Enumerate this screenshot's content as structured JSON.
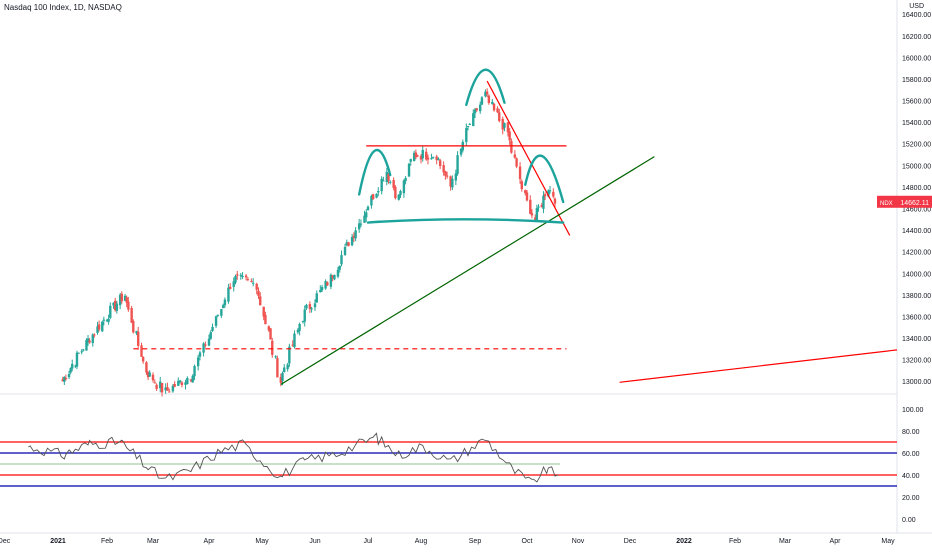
{
  "header": {
    "title": "Nasdaq 100 Index, 1D, NASDAQ",
    "currency": "USD"
  },
  "chart_data": [
    {
      "type": "candlestick",
      "title": "Nasdaq 100 Index, 1D, NASDAQ",
      "symbol": "NDX",
      "last_price": "14662.11",
      "price_axis_ticks": [
        "16400.00",
        "16200.00",
        "16000.00",
        "15800.00",
        "15600.00",
        "15400.00",
        "15200.00",
        "15000.00",
        "14800.00",
        "14600.00",
        "14400.00",
        "14200.00",
        "14000.00",
        "13800.00",
        "13600.00",
        "13400.00",
        "13200.00",
        "13000.00"
      ],
      "ylim": [
        12900,
        16420
      ],
      "time_axis_labels": [
        "Dec",
        "2021",
        "Feb",
        "Mar",
        "Apr",
        "May",
        "Jun",
        "Jul",
        "Aug",
        "Sep",
        "Oct",
        "Nov",
        "Dec",
        "2022",
        "Feb",
        "Mar",
        "Apr",
        "May"
      ],
      "key_levels": [
        {
          "name": "neckline",
          "value": 15180
        },
        {
          "name": "support-dashed",
          "value": 13300
        }
      ],
      "price_path": [
        {
          "date": "2021-01-04",
          "close": 13000
        },
        {
          "date": "2021-01-19",
          "close": 13350
        },
        {
          "date": "2021-02-01",
          "close": 13600
        },
        {
          "date": "2021-02-12",
          "close": 13800
        },
        {
          "date": "2021-02-25",
          "close": 13100
        },
        {
          "date": "2021-03-08",
          "close": 12900
        },
        {
          "date": "2021-03-22",
          "close": 13050
        },
        {
          "date": "2021-04-01",
          "close": 13400
        },
        {
          "date": "2021-04-15",
          "close": 13950
        },
        {
          "date": "2021-04-28",
          "close": 13900
        },
        {
          "date": "2021-05-12",
          "close": 13000
        },
        {
          "date": "2021-05-25",
          "close": 13600
        },
        {
          "date": "2021-06-10",
          "close": 13950
        },
        {
          "date": "2021-06-29",
          "close": 14550
        },
        {
          "date": "2021-07-12",
          "close": 14950
        },
        {
          "date": "2021-07-19",
          "close": 14700
        },
        {
          "date": "2021-07-28",
          "close": 15100
        },
        {
          "date": "2021-08-10",
          "close": 15100
        },
        {
          "date": "2021-08-18",
          "close": 14800
        },
        {
          "date": "2021-08-27",
          "close": 15300
        },
        {
          "date": "2021-09-07",
          "close": 15650
        },
        {
          "date": "2021-09-20",
          "close": 15300
        },
        {
          "date": "2021-09-30",
          "close": 14700
        },
        {
          "date": "2021-10-06",
          "close": 14500
        },
        {
          "date": "2021-10-14",
          "close": 14800
        },
        {
          "date": "2021-10-20",
          "close": 14662
        }
      ]
    },
    {
      "type": "line",
      "title": "",
      "y_axis_ticks": [
        "100.00",
        "80.00",
        "60.00",
        "40.00",
        "20.00",
        "0.00"
      ],
      "ylim": [
        -10,
        110
      ],
      "reference_lines": [
        70,
        60,
        40,
        30
      ],
      "rsi_path": [
        {
          "date": "2020-12-15",
          "value": 66
        },
        {
          "date": "2021-01-05",
          "value": 58
        },
        {
          "date": "2021-01-20",
          "value": 68
        },
        {
          "date": "2021-02-10",
          "value": 70
        },
        {
          "date": "2021-02-25",
          "value": 48
        },
        {
          "date": "2021-03-08",
          "value": 36
        },
        {
          "date": "2021-03-22",
          "value": 44
        },
        {
          "date": "2021-04-08",
          "value": 62
        },
        {
          "date": "2021-04-20",
          "value": 68
        },
        {
          "date": "2021-05-12",
          "value": 38
        },
        {
          "date": "2021-05-25",
          "value": 52
        },
        {
          "date": "2021-06-15",
          "value": 60
        },
        {
          "date": "2021-07-06",
          "value": 75
        },
        {
          "date": "2021-07-19",
          "value": 58
        },
        {
          "date": "2021-08-02",
          "value": 66
        },
        {
          "date": "2021-08-18",
          "value": 52
        },
        {
          "date": "2021-09-07",
          "value": 73
        },
        {
          "date": "2021-09-21",
          "value": 48
        },
        {
          "date": "2021-10-04",
          "value": 32
        },
        {
          "date": "2021-10-13",
          "value": 45
        },
        {
          "date": "2021-10-20",
          "value": 40
        }
      ]
    }
  ],
  "colors": {
    "up": "#26a69a",
    "down": "#ef5350",
    "resistance": "#ff0000",
    "trendline": "#006400",
    "pattern": "#1ba39c",
    "rsi_line": "#555555",
    "rsi_mid": "#90c090",
    "band_blue": "#0000aa",
    "last_price_bg": "#f23645",
    "axis_text": "#131722"
  }
}
